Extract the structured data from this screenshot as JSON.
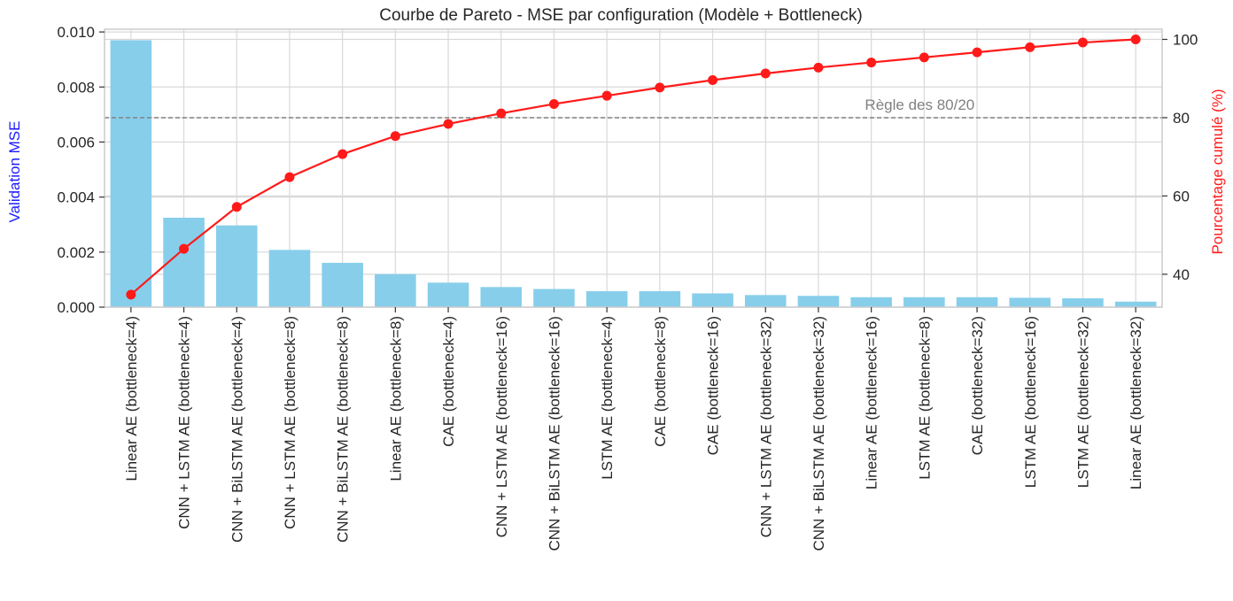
{
  "chart_data": {
    "type": "bar",
    "title": "Courbe de Pareto - MSE par configuration (Modèle + Bottleneck)",
    "ylabel": "Validation MSE",
    "y2label": "Pourcentage cumulé (%)",
    "ylim": [
      0,
      0.0101
    ],
    "y2lim": [
      31.6,
      102.6
    ],
    "yticks": [
      "0.000",
      "0.002",
      "0.004",
      "0.006",
      "0.008",
      "0.010"
    ],
    "y2ticks": [
      "40",
      "60",
      "80",
      "100"
    ],
    "grid": true,
    "categories": [
      "Linear AE (bottleneck=4)",
      "CNN + LSTM AE (bottleneck=4)",
      "CNN + BiLSTM AE (bottleneck=4)",
      "CNN + LSTM AE (bottleneck=8)",
      "CNN + BiLSTM AE (bottleneck=8)",
      "Linear AE (bottleneck=8)",
      "CAE (bottleneck=4)",
      "CNN + LSTM AE (bottleneck=16)",
      "CNN + BiLSTM AE (bottleneck=16)",
      "LSTM AE (bottleneck=4)",
      "CAE (bottleneck=8)",
      "CAE (bottleneck=16)",
      "CNN + LSTM AE (bottleneck=32)",
      "CNN + BiLSTM AE (bottleneck=32)",
      "Linear AE (bottleneck=16)",
      "LSTM AE (bottleneck=8)",
      "CAE (bottleneck=32)",
      "LSTM AE (bottleneck=16)",
      "LSTM AE (bottleneck=32)",
      "Linear AE (bottleneck=32)"
    ],
    "series": [
      {
        "type": "bar",
        "axis": "left",
        "color": "#87ceeb",
        "values": [
          0.0097,
          0.00325,
          0.00297,
          0.00208,
          0.00161,
          0.0012,
          0.00089,
          0.00073,
          0.00066,
          0.00058,
          0.00058,
          0.0005,
          0.00044,
          0.00041,
          0.00036,
          0.00036,
          0.00036,
          0.00034,
          0.00032,
          0.0002
        ]
      },
      {
        "type": "line",
        "axis": "right",
        "color": "#ff1a1a",
        "values": [
          34.8,
          46.5,
          57.2,
          64.8,
          70.7,
          75.3,
          78.4,
          81.1,
          83.5,
          85.6,
          87.7,
          89.6,
          91.3,
          92.8,
          94.1,
          95.4,
          96.7,
          98.0,
          99.2,
          100.0
        ]
      }
    ],
    "reference_line": {
      "value": 80,
      "axis": "right",
      "label": "Règle des 80/20",
      "color": "#808080"
    }
  }
}
